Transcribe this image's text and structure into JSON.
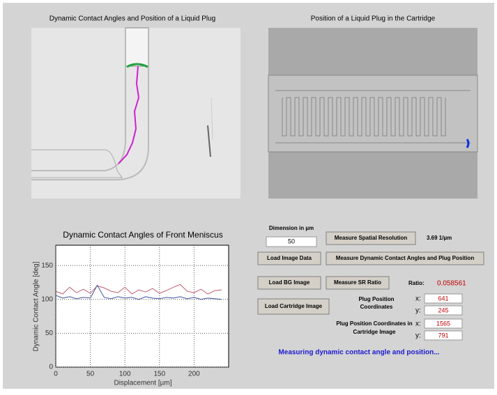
{
  "panels": {
    "left_title": "Dynamic Contact Angles and Position of a Liquid Plug",
    "right_title": "Position of a Liquid Plug in the Cartridge"
  },
  "controls": {
    "dimension_label": "Dimension in µm",
    "dimension_value": "50",
    "measure_resolution": "Measure Spatial Resolution",
    "resolution_value": "3.69 1/µm",
    "load_image": "Load Image Data",
    "measure_angles": "Measure Dynamic Contact Angles and Plug Position",
    "load_bg": "Load BG Image",
    "measure_sr": "Measure SR Ratio",
    "ratio_label": "Ratio:",
    "ratio_value": "0.058561",
    "load_cartridge": "Load Cartridge Image",
    "plug_label": [
      "Plug Position",
      "Coordinates"
    ],
    "plug_x_label": "x:",
    "plug_x": "641",
    "plug_y_label": "y:",
    "plug_y": "245",
    "cart_label": [
      "Plug Position Coordinates in",
      "Cartridge Image"
    ],
    "cart_x_label": "x:",
    "cart_x": "1565",
    "cart_y_label": "y:",
    "cart_y": "791",
    "status": "Measuring dynamic contact angle and position..."
  },
  "chart_data": {
    "type": "line",
    "title": "Dynamic Contact Angles of Front Meniscus",
    "x_label": "Displacement [µm]",
    "y_label": "Dynamic Contact Angle [deg]",
    "x": [
      0,
      10,
      20,
      30,
      40,
      50,
      60,
      70,
      80,
      90,
      100,
      110,
      120,
      130,
      140,
      150,
      160,
      170,
      180,
      190,
      200,
      210,
      220,
      230,
      240
    ],
    "series": [
      {
        "color": "#c06070",
        "values": [
          112,
          108,
          118,
          110,
          115,
          109,
          120,
          117,
          112,
          110,
          118,
          108,
          114,
          111,
          116,
          109,
          113,
          118,
          122,
          112,
          110,
          115,
          108,
          113,
          114
        ]
      },
      {
        "color": "#4050a0",
        "values": [
          106,
          102,
          104,
          101,
          103,
          102,
          121,
          103,
          101,
          104,
          102,
          103,
          100,
          104,
          102,
          101,
          103,
          102,
          104,
          101,
          103,
          100,
          102,
          101,
          100
        ]
      }
    ],
    "xlim": [
      0,
      250
    ],
    "ylim": [
      0,
      180
    ],
    "xticks": [
      0,
      50,
      100,
      150,
      200
    ],
    "yticks": [
      0,
      50,
      100,
      150
    ],
    "grid": true
  }
}
